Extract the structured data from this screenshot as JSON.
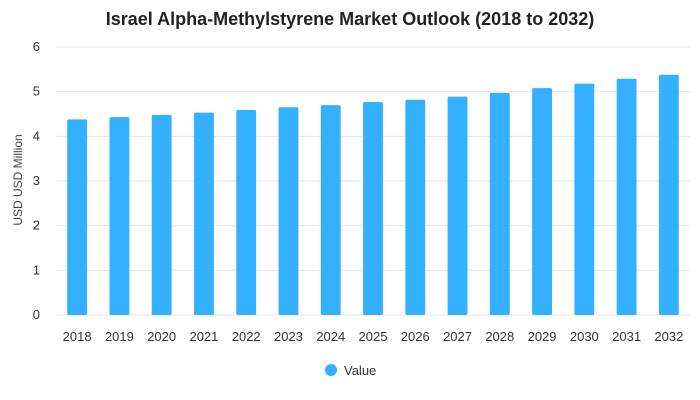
{
  "chart_data": {
    "type": "bar",
    "title": "Israel Alpha-Methylstyrene Market Outlook (2018 to 2032)",
    "xlabel": "",
    "ylabel": "USD USD Million",
    "categories": [
      "2018",
      "2019",
      "2020",
      "2021",
      "2022",
      "2023",
      "2024",
      "2025",
      "2026",
      "2027",
      "2028",
      "2029",
      "2030",
      "2031",
      "2032"
    ],
    "series": [
      {
        "name": "Value",
        "values": [
          4.38,
          4.43,
          4.48,
          4.53,
          4.59,
          4.65,
          4.7,
          4.77,
          4.82,
          4.89,
          4.97,
          5.08,
          5.18,
          5.29,
          5.38
        ]
      }
    ],
    "ylim": [
      0,
      6
    ],
    "yticks": [
      0,
      1,
      2,
      3,
      4,
      5,
      6
    ],
    "grid": true,
    "legend": "bottom-center",
    "colors": {
      "bar": "#33b1ff",
      "grid": "#e6e6e6"
    }
  }
}
